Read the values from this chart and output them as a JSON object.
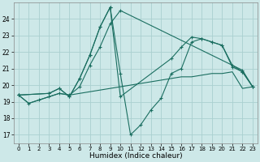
{
  "xlabel": "Humidex (Indice chaleur)",
  "xlim": [
    -0.5,
    23.5
  ],
  "ylim": [
    16.5,
    25.0
  ],
  "yticks": [
    17,
    18,
    19,
    20,
    21,
    22,
    23,
    24
  ],
  "xticks": [
    0,
    1,
    2,
    3,
    4,
    5,
    6,
    7,
    8,
    9,
    10,
    11,
    12,
    13,
    14,
    15,
    16,
    17,
    18,
    19,
    20,
    21,
    22,
    23
  ],
  "bg_color": "#cde8e8",
  "grid_color": "#aad0d0",
  "line_color": "#1a6e60",
  "series": [
    {
      "x": [
        0,
        1,
        2,
        3,
        4,
        5,
        6,
        7,
        8,
        9,
        10,
        11,
        12,
        13,
        14,
        15,
        16,
        17,
        18,
        19,
        20,
        21,
        22,
        23
      ],
      "y": [
        19.4,
        18.9,
        19.1,
        19.3,
        19.5,
        19.4,
        19.5,
        19.6,
        19.7,
        19.8,
        19.9,
        20.0,
        20.1,
        20.2,
        20.3,
        20.4,
        20.5,
        20.5,
        20.6,
        20.7,
        20.7,
        20.8,
        19.8,
        19.9
      ],
      "marker": null,
      "lw": 0.8
    },
    {
      "x": [
        0,
        1,
        2,
        3,
        4,
        5,
        6,
        7,
        8,
        9,
        10,
        22,
        23
      ],
      "y": [
        19.4,
        18.9,
        19.1,
        19.3,
        19.5,
        19.4,
        19.9,
        21.2,
        22.3,
        23.7,
        24.5,
        20.9,
        19.9
      ],
      "marker": "+",
      "lw": 0.8
    },
    {
      "x": [
        0,
        3,
        4,
        5,
        6,
        7,
        8,
        9,
        10,
        11,
        12,
        13,
        14,
        15,
        16,
        17,
        18,
        19,
        20,
        21,
        22,
        23
      ],
      "y": [
        19.4,
        19.5,
        19.8,
        19.3,
        20.4,
        21.8,
        23.5,
        24.7,
        20.7,
        17.0,
        17.6,
        18.5,
        19.2,
        20.7,
        21.0,
        22.6,
        22.8,
        22.6,
        22.4,
        21.1,
        20.8,
        19.9
      ],
      "marker": "+",
      "lw": 0.8
    },
    {
      "comment": "line peak at x=9 ~24.7 then x=10 ~19.3, jumps to x=15 ~21.6, peak x=17-18",
      "x": [
        0,
        3,
        4,
        5,
        6,
        7,
        8,
        9,
        10,
        15,
        16,
        17,
        18,
        19,
        20,
        21,
        22,
        23
      ],
      "y": [
        19.4,
        19.5,
        19.8,
        19.3,
        20.4,
        21.8,
        23.5,
        24.7,
        19.3,
        21.6,
        22.3,
        22.9,
        22.8,
        22.6,
        22.4,
        21.2,
        20.8,
        19.9
      ],
      "marker": "+",
      "lw": 0.8
    }
  ]
}
